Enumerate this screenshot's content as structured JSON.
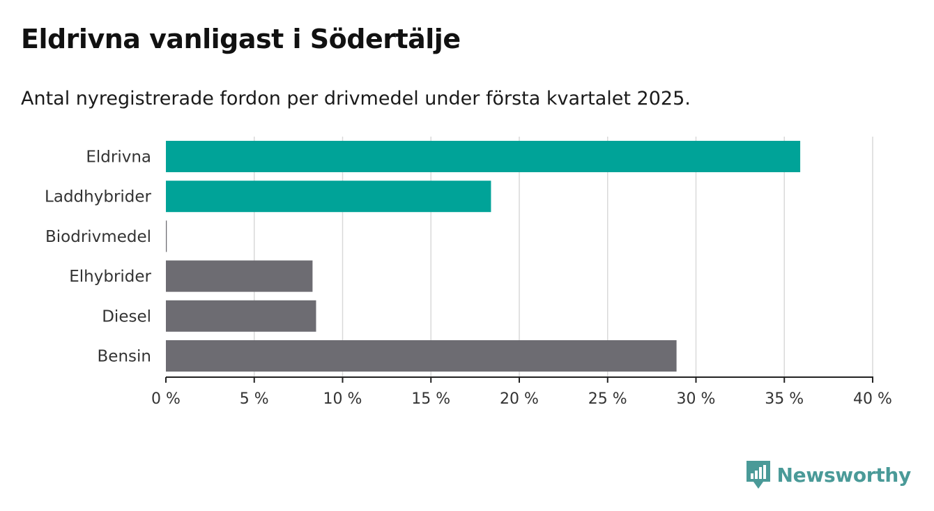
{
  "header": {
    "title": "Eldrivna vanligast i Södertälje",
    "subtitle": "Antal nyregistrerade fordon per drivmedel under första kvartalet 2025."
  },
  "brand": {
    "name": "Newsworthy",
    "icon": "newsworthy-logo-icon",
    "color": "#4a9a98"
  },
  "colors": {
    "highlight": "#00a398",
    "default": "#6d6c72",
    "grid": "#d9d9d9",
    "axis": "#222222"
  },
  "chart_data": {
    "type": "bar",
    "orientation": "horizontal",
    "categories": [
      "Eldrivna",
      "Laddhybrider",
      "Biodrivmedel",
      "Elhybrider",
      "Diesel",
      "Bensin"
    ],
    "values": [
      35.9,
      18.4,
      0.05,
      8.3,
      8.5,
      28.9
    ],
    "highlighted": [
      true,
      true,
      false,
      false,
      false,
      false
    ],
    "unit": "%",
    "xlim": [
      0,
      40
    ],
    "xticks": [
      0,
      5,
      10,
      15,
      20,
      25,
      30,
      35,
      40
    ],
    "xtick_labels": [
      "0 %",
      "5 %",
      "10 %",
      "15 %",
      "20 %",
      "25 %",
      "30 %",
      "35 %",
      "40 %"
    ],
    "grid": "vertical",
    "legend": "none"
  }
}
